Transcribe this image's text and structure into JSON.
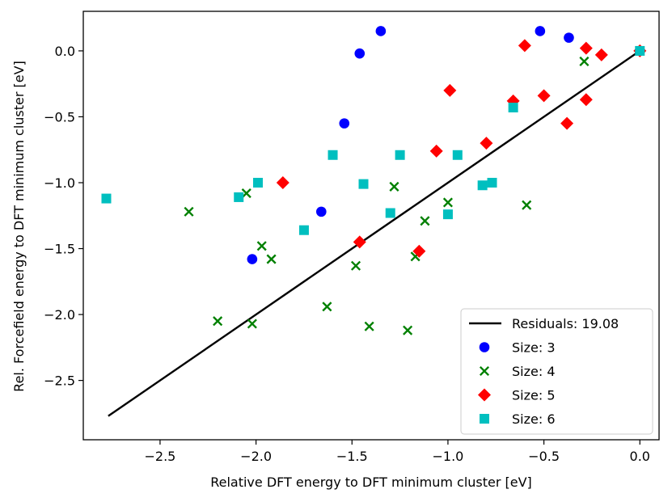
{
  "chart_data": {
    "type": "scatter",
    "title": "",
    "xlabel": "Relative DFT energy to DFT minimum cluster [eV]",
    "ylabel": "Rel. Forcefield energy to DFT minimum cluster [eV]",
    "xlim": [
      -2.9,
      0.1
    ],
    "ylim": [
      -2.95,
      0.3
    ],
    "xticks": [
      -2.5,
      -2.0,
      -1.5,
      -1.0,
      -0.5,
      0.0
    ],
    "xtick_labels": [
      "−2.5",
      "−2.0",
      "−1.5",
      "−1.0",
      "−0.5",
      "0.0"
    ],
    "yticks": [
      -2.5,
      -2.0,
      -1.5,
      -1.0,
      -0.5,
      0.0
    ],
    "ytick_labels": [
      "−2.5",
      "−2.0",
      "−1.5",
      "−1.0",
      "−0.5",
      "0.0"
    ],
    "grid": false,
    "legend_position": "bottom-right",
    "line": {
      "name": "Residuals: 19.08",
      "color": "#000000",
      "x": [
        -2.77,
        0.0
      ],
      "y": [
        -2.77,
        0.0
      ]
    },
    "series": [
      {
        "name": "Size: 3",
        "marker": "circle",
        "color": "#0000ff",
        "points": [
          [
            -1.35,
            0.15
          ],
          [
            -1.46,
            -0.02
          ],
          [
            -0.52,
            0.15
          ],
          [
            -0.37,
            0.1
          ],
          [
            -0.0,
            0.0
          ],
          [
            -1.54,
            -0.55
          ],
          [
            -1.66,
            -1.22
          ],
          [
            -2.02,
            -1.58
          ]
        ]
      },
      {
        "name": "Size: 4",
        "marker": "x",
        "color": "#008000",
        "points": [
          [
            -2.35,
            -1.22
          ],
          [
            -2.05,
            -1.08
          ],
          [
            -1.97,
            -1.48
          ],
          [
            -1.92,
            -1.58
          ],
          [
            -2.2,
            -2.05
          ],
          [
            -2.02,
            -2.07
          ],
          [
            -1.63,
            -1.94
          ],
          [
            -1.41,
            -2.09
          ],
          [
            -1.21,
            -2.12
          ],
          [
            -1.48,
            -1.63
          ],
          [
            -1.17,
            -1.56
          ],
          [
            -1.12,
            -1.29
          ],
          [
            -1.28,
            -1.03
          ],
          [
            -1.0,
            -1.15
          ],
          [
            -0.59,
            -1.17
          ],
          [
            -0.29,
            -0.08
          ]
        ]
      },
      {
        "name": "Size: 5",
        "marker": "diamond",
        "color": "#ff0000",
        "points": [
          [
            -1.86,
            -1.0
          ],
          [
            -1.46,
            -1.45
          ],
          [
            -1.15,
            -1.52
          ],
          [
            -1.06,
            -0.76
          ],
          [
            -0.8,
            -0.7
          ],
          [
            -0.99,
            -0.3
          ],
          [
            -0.66,
            -0.38
          ],
          [
            -0.5,
            -0.34
          ],
          [
            -0.38,
            -0.55
          ],
          [
            -0.28,
            -0.37
          ],
          [
            -0.6,
            0.04
          ],
          [
            -0.28,
            0.02
          ],
          [
            -0.2,
            -0.03
          ],
          [
            0.0,
            0.0
          ]
        ]
      },
      {
        "name": "Size: 6",
        "marker": "square",
        "color": "#00bfbf",
        "points": [
          [
            -2.78,
            -1.12
          ],
          [
            -2.09,
            -1.11
          ],
          [
            -1.99,
            -1.0
          ],
          [
            -1.75,
            -1.36
          ],
          [
            -1.6,
            -0.79
          ],
          [
            -1.44,
            -1.01
          ],
          [
            -1.3,
            -1.23
          ],
          [
            -1.25,
            -0.79
          ],
          [
            -1.0,
            -1.24
          ],
          [
            -0.95,
            -0.79
          ],
          [
            -0.82,
            -1.02
          ],
          [
            -0.77,
            -1.0
          ],
          [
            -0.66,
            -0.43
          ],
          [
            0.0,
            0.0
          ]
        ]
      }
    ]
  }
}
